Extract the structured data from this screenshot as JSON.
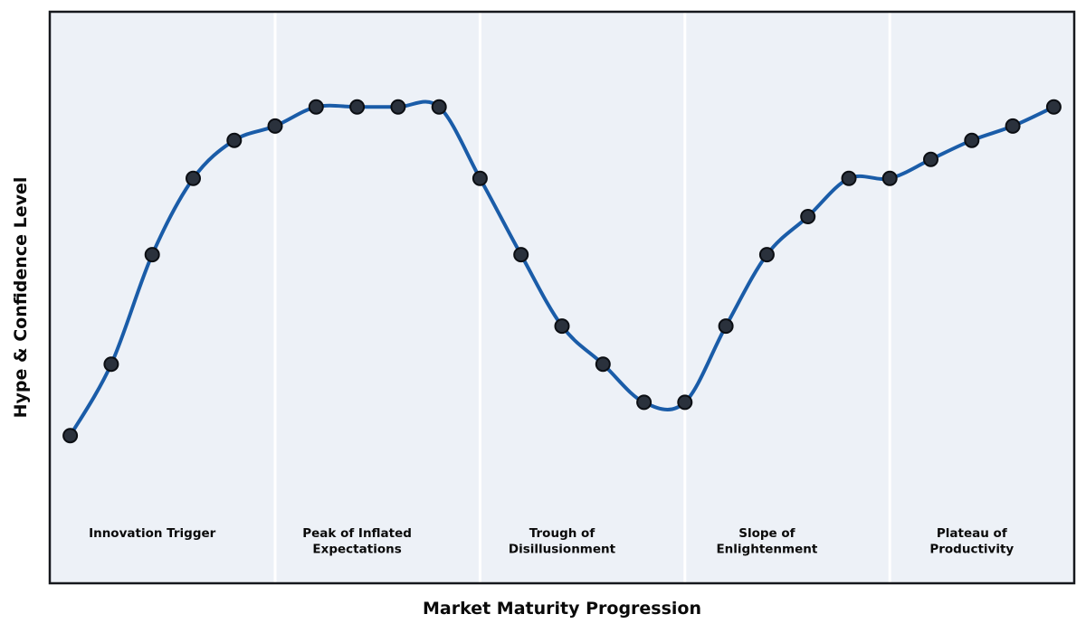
{
  "chart_data": {
    "type": "line",
    "title": "",
    "xlabel": "Market Maturity Progression",
    "ylabel": "Hype & Confidence Level",
    "x": [
      0,
      1,
      2,
      3,
      4,
      5,
      6,
      7,
      8,
      9,
      10,
      11,
      12,
      13,
      14,
      15,
      16,
      17,
      18,
      19,
      20,
      21,
      22,
      23,
      24
    ],
    "series": [
      {
        "name": "Hype & Confidence",
        "values": [
          31,
          46,
          69,
          85,
          93,
          96,
          100,
          100,
          100,
          100,
          85,
          69,
          54,
          46,
          38,
          38,
          54,
          69,
          77,
          85,
          85,
          89,
          93,
          96,
          100
        ]
      }
    ],
    "xlim": [
      -0.5,
      24.5
    ],
    "ylim": [
      0,
      120
    ],
    "grid": false,
    "legend": false,
    "ticks": "none",
    "phase_dividers_x": [
      5,
      10,
      15,
      20
    ],
    "phases": [
      {
        "label": "Innovation Trigger",
        "lines": [
          "Innovation Trigger"
        ],
        "x": 2
      },
      {
        "label": "Peak of Inflated Expectations",
        "lines": [
          "Peak of Inflated",
          "Expectations"
        ],
        "x": 7
      },
      {
        "label": "Trough of Disillusionment",
        "lines": [
          "Trough of",
          "Disillusionment"
        ],
        "x": 12
      },
      {
        "label": "Slope of Enlightenment",
        "lines": [
          "Slope of",
          "Enlightenment"
        ],
        "x": 17
      },
      {
        "label": "Plateau of Productivity",
        "lines": [
          "Plateau of",
          "Productivity"
        ],
        "x": 22
      }
    ],
    "colors": {
      "line": "#1a5ca8",
      "marker_fill": "#2a313c",
      "marker_edge": "#0b0e13",
      "band": "#edf1f7",
      "divider": "#ffffff",
      "border": "#16181d",
      "text": "#0a0a0a",
      "figure_bg": "#ffffff"
    }
  }
}
